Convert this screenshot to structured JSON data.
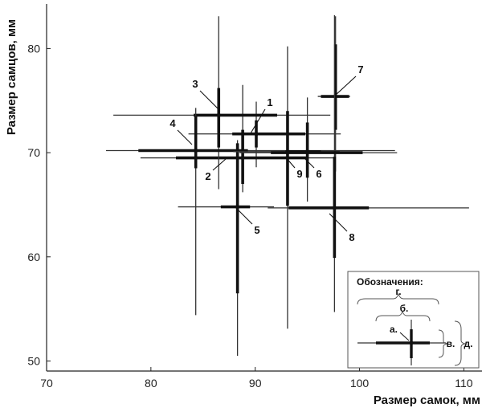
{
  "chart_data": {
    "type": "scatter",
    "xlabel": "Размер самок, мм",
    "ylabel": "Размер самцов, мм",
    "xlim": [
      70,
      111
    ],
    "ylim": [
      48.5,
      84
    ],
    "xticks": [
      70,
      80,
      90,
      100,
      110
    ],
    "yticks": [
      50,
      60,
      70,
      80
    ],
    "grid": false,
    "legend_position": "bottom-right",
    "points": [
      {
        "label": "1",
        "x": 90.1,
        "y": 71.8,
        "x_range": [
          83.6,
          98.2
        ],
        "x_sd": [
          87.8,
          94.8
        ],
        "y_range": [
          68.6,
          74.9
        ],
        "y_sd": [
          70.5,
          73.1
        ]
      },
      {
        "label": "2",
        "x": 88.8,
        "y": 69.5,
        "x_range": [
          79.0,
          97.5
        ],
        "x_sd": [
          82.4,
          95.1
        ],
        "y_range": [
          66.2,
          76.5
        ],
        "y_sd": [
          67.0,
          72.2
        ]
      },
      {
        "label": "3",
        "x": 86.5,
        "y": 73.6,
        "x_range": [
          76.4,
          97.2
        ],
        "x_sd": [
          84.1,
          92.1
        ],
        "y_range": [
          66.5,
          83.1
        ],
        "y_sd": [
          70.5,
          76.2
        ]
      },
      {
        "label": "4",
        "x": 84.3,
        "y": 70.2,
        "x_range": [
          75.7,
          103.4
        ],
        "x_sd": [
          78.8,
          89.3
        ],
        "y_range": [
          54.4,
          74.3
        ],
        "y_sd": [
          68.5,
          73.5
        ]
      },
      {
        "label": "5",
        "x": 88.3,
        "y": 64.8,
        "x_range": [
          82.6,
          91.8
        ],
        "x_sd": [
          86.7,
          89.5
        ],
        "y_range": [
          50.5,
          71.2
        ],
        "y_sd": [
          56.5,
          70.9
        ]
      },
      {
        "label": "6",
        "x": 95.0,
        "y": 70.1,
        "x_range": [
          87.9,
          98.1
        ],
        "x_sd": [
          92.9,
          96.3
        ],
        "y_range": [
          65.3,
          75.3
        ],
        "y_sd": [
          67.6,
          72.9
        ]
      },
      {
        "label": "7",
        "x": 97.7,
        "y": 75.4,
        "x_range": [
          96.0,
          99.1
        ],
        "x_sd": [
          96.3,
          99.0
        ],
        "y_range": [
          68.2,
          83.1
        ],
        "y_sd": [
          72.2,
          80.4
        ]
      },
      {
        "label": "8",
        "x": 97.6,
        "y": 64.7,
        "x_range": [
          91.2,
          110.5
        ],
        "x_sd": [
          93.2,
          100.9
        ],
        "y_range": [
          54.7,
          83.2
        ],
        "y_sd": [
          59.9,
          69.6
        ]
      },
      {
        "label": "9",
        "x": 93.1,
        "y": 70.0,
        "x_range": [
          88.5,
          103.6
        ],
        "x_sd": [
          91.5,
          100.3
        ],
        "y_range": [
          53.1,
          80.2
        ],
        "y_sd": [
          64.9,
          74.0
        ]
      }
    ]
  },
  "legend": {
    "title": "Обозначения:",
    "labels": [
      "а.",
      "б.",
      "в.",
      "г.",
      "д."
    ]
  }
}
